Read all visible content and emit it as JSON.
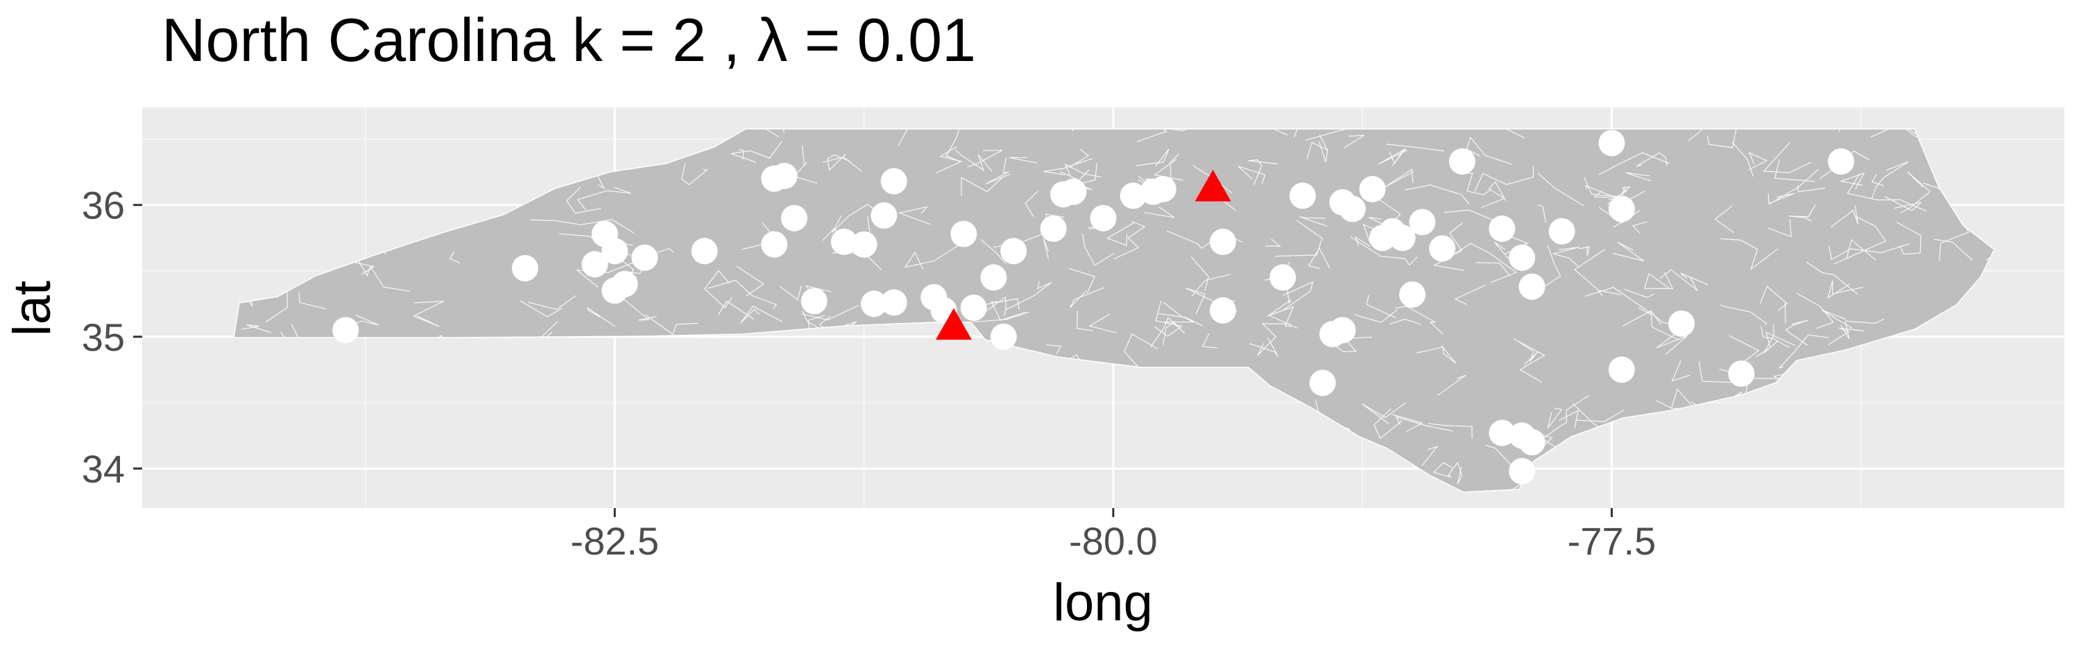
{
  "chart_data": {
    "type": "scatter",
    "title": "North Carolina  k =  2 ,  λ  =  0.01",
    "xlabel": "long",
    "ylabel": "lat",
    "xlim": [
      -84.87,
      -75.23
    ],
    "ylim": [
      33.7,
      36.74
    ],
    "x_ticks": [
      -82.5,
      -80.0,
      -77.5
    ],
    "x_tick_labels": [
      "-82.5",
      "-80.0",
      "-77.5"
    ],
    "y_ticks": [
      34,
      35,
      36
    ],
    "y_tick_labels": [
      "34",
      "35",
      "36"
    ],
    "grid": true,
    "legend": "none",
    "colors": {
      "panel": "#ebebeb",
      "grid_major": "#ffffff",
      "state_fill": "#bebebe",
      "border_lines": "#ffffff",
      "points": "#ffffff",
      "centers": "#ff0000",
      "text": "#000000",
      "tick_text": "#4d4d4d"
    },
    "series": [
      {
        "marker": "circle",
        "color": "#ffffff",
        "x": [
          -83.85,
          -82.95,
          -82.6,
          -82.55,
          -82.5,
          -82.5,
          -82.45,
          -82.35,
          -82.05,
          -81.7,
          -81.7,
          -81.65,
          -81.6,
          -81.5,
          -81.35,
          -81.25,
          -81.2,
          -81.15,
          -81.1,
          -81.1,
          -80.9,
          -80.85,
          -80.75,
          -80.7,
          -80.6,
          -80.55,
          -80.5,
          -80.3,
          -80.25,
          -80.2,
          -80.05,
          -79.9,
          -79.8,
          -79.75,
          -79.45,
          -79.45,
          -79.15,
          -79.05,
          -78.95,
          -78.9,
          -78.85,
          -78.85,
          -78.8,
          -78.7,
          -78.65,
          -78.6,
          -78.55,
          -78.5,
          -78.45,
          -78.35,
          -78.25,
          -78.05,
          -77.95,
          -77.95,
          -77.9,
          -77.9,
          -77.75,
          -77.5,
          -77.45,
          -77.45,
          -77.15,
          -76.85,
          -76.35,
          -78.05,
          -77.95
        ],
        "y": [
          35.05,
          35.52,
          35.55,
          35.78,
          35.65,
          35.35,
          35.4,
          35.6,
          35.65,
          36.2,
          35.7,
          36.22,
          35.9,
          35.27,
          35.72,
          35.7,
          35.25,
          35.92,
          36.18,
          35.26,
          35.3,
          35.2,
          35.78,
          35.22,
          35.45,
          35.0,
          35.65,
          35.82,
          36.08,
          36.1,
          35.9,
          36.07,
          36.1,
          36.12,
          35.2,
          35.72,
          35.45,
          36.07,
          34.65,
          35.02,
          35.05,
          36.02,
          35.97,
          36.12,
          35.75,
          35.8,
          35.75,
          35.32,
          35.87,
          35.67,
          36.33,
          35.82,
          34.25,
          33.98,
          35.38,
          34.2,
          35.8,
          36.47,
          35.97,
          34.75,
          35.1,
          34.72,
          36.33,
          34.27,
          35.6
        ]
      },
      {
        "marker": "triangle",
        "color": "#ff0000",
        "x": [
          -80.8,
          -79.5
        ],
        "y": [
          35.08,
          36.13
        ]
      }
    ]
  }
}
